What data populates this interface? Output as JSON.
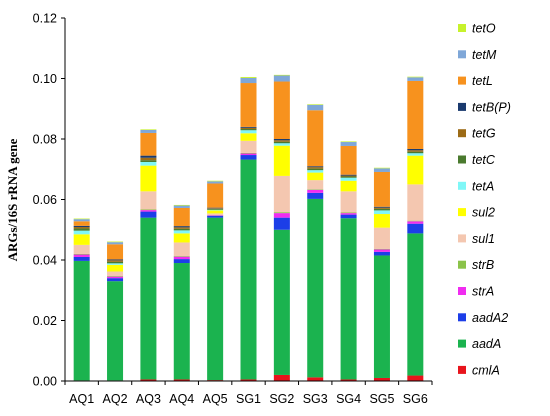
{
  "chart_data": {
    "type": "bar",
    "stacked": true,
    "ylabel": "ARGs/16S rRNA gene",
    "xlabel": "",
    "ylim": [
      0,
      0.12
    ],
    "yticks": [
      "0.00",
      "0.02",
      "0.04",
      "0.06",
      "0.08",
      "0.10",
      "0.12"
    ],
    "grid": false,
    "legend_position": "right",
    "categories": [
      "AQ1",
      "AQ2",
      "AQ3",
      "AQ4",
      "AQ5",
      "SG1",
      "SG2",
      "SG3",
      "SG4",
      "SG5",
      "SG6"
    ],
    "series": [
      {
        "name": "cmlA",
        "color": "#e8141c",
        "values": [
          0.0002,
          0.0002,
          0.0005,
          0.0005,
          0.0003,
          0.0005,
          0.002,
          0.0012,
          0.0005,
          0.001,
          0.0018
        ]
      },
      {
        "name": "aadA",
        "color": "#1bb34f",
        "values": [
          0.0395,
          0.0328,
          0.0535,
          0.0385,
          0.0537,
          0.0727,
          0.048,
          0.059,
          0.0533,
          0.0405,
          0.047
        ]
      },
      {
        "name": "aadA2",
        "color": "#1c3ee8",
        "values": [
          0.0013,
          0.001,
          0.002,
          0.0013,
          0.0006,
          0.0015,
          0.004,
          0.002,
          0.0012,
          0.0012,
          0.0032
        ]
      },
      {
        "name": "strA",
        "color": "#f02cf0",
        "values": [
          0.0008,
          0.0005,
          0.0005,
          0.0008,
          0.0002,
          0.0005,
          0.0015,
          0.001,
          0.0005,
          0.0008,
          0.0008
        ]
      },
      {
        "name": "strB",
        "color": "#8bc34a",
        "values": [
          0.0002,
          0.0002,
          0.0002,
          0.0002,
          0.0001,
          0.0002,
          0.0003,
          0.0002,
          0.0002,
          0.0002,
          0.0002
        ]
      },
      {
        "name": "sul1",
        "color": "#f4c7b0",
        "values": [
          0.003,
          0.0015,
          0.006,
          0.0045,
          0.0005,
          0.004,
          0.012,
          0.003,
          0.007,
          0.007,
          0.012
        ]
      },
      {
        "name": "sul2",
        "color": "#ffff00",
        "values": [
          0.0035,
          0.0022,
          0.0085,
          0.003,
          0.001,
          0.0025,
          0.01,
          0.0025,
          0.0035,
          0.0045,
          0.0095
        ]
      },
      {
        "name": "tetA",
        "color": "#7ff7f7",
        "values": [
          0.0012,
          0.0005,
          0.0012,
          0.001,
          0.0002,
          0.001,
          0.0008,
          0.0008,
          0.001,
          0.0012,
          0.0008
        ]
      },
      {
        "name": "tetC",
        "color": "#4a7a2e",
        "values": [
          0.0007,
          0.0005,
          0.0006,
          0.0005,
          0.0003,
          0.0004,
          0.0005,
          0.0005,
          0.0004,
          0.0005,
          0.0005
        ]
      },
      {
        "name": "tetG",
        "color": "#9c6b16",
        "values": [
          0.0005,
          0.0005,
          0.0008,
          0.0005,
          0.0002,
          0.0004,
          0.0005,
          0.0005,
          0.0003,
          0.0004,
          0.0005
        ]
      },
      {
        "name": "tetB(P)",
        "color": "#1a3a6e",
        "values": [
          0.0004,
          0.0003,
          0.0007,
          0.0004,
          0.0002,
          0.0003,
          0.0004,
          0.0003,
          0.0003,
          0.0003,
          0.0004
        ]
      },
      {
        "name": "tetL",
        "color": "#f7921e",
        "values": [
          0.0015,
          0.005,
          0.0075,
          0.006,
          0.008,
          0.0145,
          0.019,
          0.0185,
          0.0095,
          0.0115,
          0.0225
        ]
      },
      {
        "name": "tetM",
        "color": "#7fa7d8",
        "values": [
          0.0007,
          0.0007,
          0.001,
          0.0008,
          0.0007,
          0.0017,
          0.002,
          0.0018,
          0.0013,
          0.0012,
          0.0012
        ]
      },
      {
        "name": "tetO",
        "color": "#c7f22c",
        "values": [
          0.0002,
          0.0002,
          0.0002,
          0.0002,
          0.0002,
          0.0003,
          0.0002,
          0.0002,
          0.0002,
          0.0002,
          0.0002
        ]
      }
    ]
  }
}
